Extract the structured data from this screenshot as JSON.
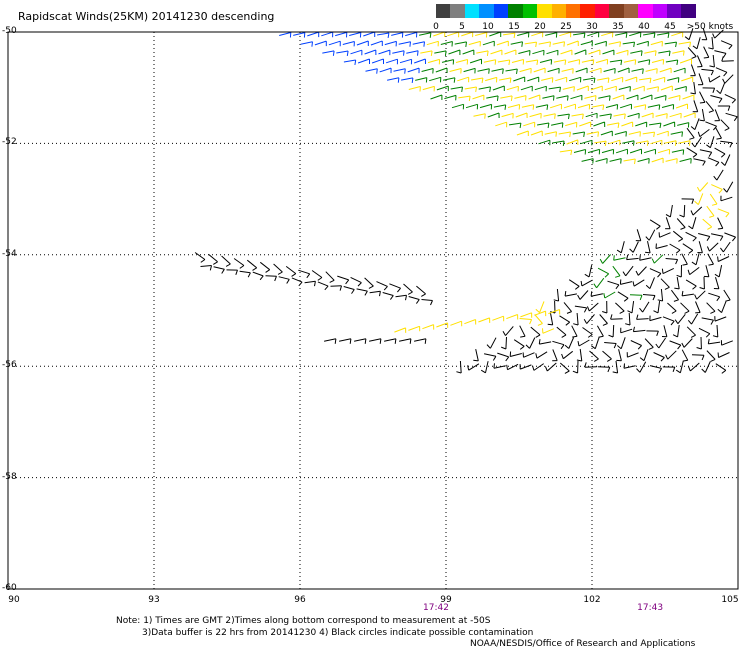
{
  "title": "Rapidscat Winds(25KM) 20141230 descending",
  "legend": {
    "colors": [
      "#404040",
      "#7f7f7f",
      "#00e0ff",
      "#0090ff",
      "#0040ff",
      "#008000",
      "#00c000",
      "#ffe000",
      "#ffb000",
      "#ff7000",
      "#ff2000",
      "#ff0040",
      "#804020",
      "#a06040",
      "#ff00ff",
      "#c000ff",
      "#7000c0",
      "#400080"
    ],
    "labels": [
      "0",
      "5",
      "10",
      "15",
      "20",
      "25",
      "30",
      "35",
      "40",
      "45",
      ">50 knots"
    ]
  },
  "axes": {
    "x_ticks": [
      "90",
      "93",
      "96",
      "99",
      "102",
      "105"
    ],
    "y_ticks": [
      "-50",
      "-52",
      "-54",
      "-56",
      "-58",
      "-60"
    ],
    "x_range": [
      90,
      105
    ],
    "y_range": [
      -60,
      -50
    ]
  },
  "times": [
    {
      "label": "17:42",
      "lon": 99.0
    },
    {
      "label": "17:43",
      "lon": 103.4
    }
  ],
  "swath": {
    "band1_colors": [
      "#0040ff",
      "#008000",
      "#ffe000"
    ],
    "band2_colors": [
      "#000000",
      "#ffe000",
      "#008000"
    ]
  },
  "notes": [
    "Note: 1) Times are GMT 2)Times along bottom correspond to measurement at -50S",
    "3)Data buffer is 22 hrs from 20141230 4) Black circles indicate possible contamination",
    "NOAA/NESDIS/Office of Research and Applications"
  ]
}
